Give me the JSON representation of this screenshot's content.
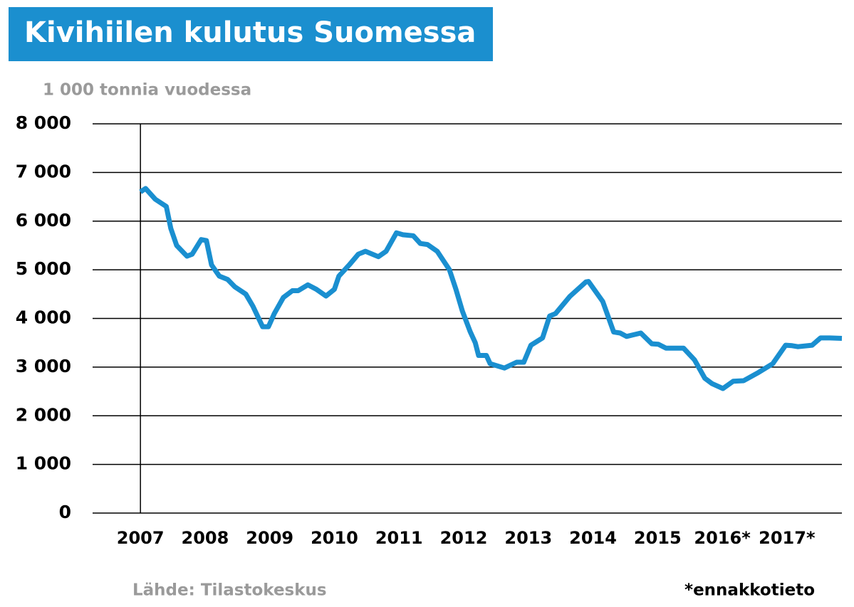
{
  "chart_data": {
    "type": "line",
    "title": "Kivihiilen kulutus Suomessa",
    "subtitle": "1 000 tonnia vuodessa",
    "source": "Lähde: Tilastokeskus",
    "note": "*ennakkotieto",
    "x": [
      2007.0,
      2007.08,
      2007.23,
      2007.4,
      2007.47,
      2007.56,
      2007.72,
      2007.8,
      2007.94,
      2008.02,
      2008.1,
      2008.22,
      2008.35,
      2008.46,
      2008.63,
      2008.74,
      2008.89,
      2008.98,
      2009.07,
      2009.21,
      2009.35,
      2009.44,
      2009.59,
      2009.72,
      2009.87,
      2010.0,
      2010.07,
      2010.23,
      2010.37,
      2010.48,
      2010.68,
      2010.8,
      2010.96,
      2011.06,
      2011.22,
      2011.33,
      2011.44,
      2011.59,
      2011.78,
      2011.88,
      2011.98,
      2012.1,
      2012.18,
      2012.23,
      2012.35,
      2012.41,
      2012.63,
      2012.82,
      2012.93,
      2013.04,
      2013.22,
      2013.33,
      2013.42,
      2013.64,
      2013.89,
      2013.93,
      2014.15,
      2014.32,
      2014.42,
      2014.52,
      2014.74,
      2014.91,
      2015.01,
      2015.13,
      2015.4,
      2015.57,
      2015.73,
      2015.84,
      2016.01,
      2016.17,
      2016.33,
      2016.56,
      2016.78,
      2016.98,
      2017.08,
      2017.17,
      2017.39,
      2017.52,
      2017.66,
      2017.85
    ],
    "series": [
      {
        "name": "Kivihiilen kulutus",
        "color": "#1a8fd0",
        "values": [
          6600,
          6670,
          6450,
          6300,
          5850,
          5500,
          5280,
          5320,
          5620,
          5600,
          5100,
          4870,
          4800,
          4650,
          4500,
          4250,
          3830,
          3830,
          4100,
          4430,
          4570,
          4570,
          4690,
          4600,
          4460,
          4600,
          4870,
          5100,
          5320,
          5380,
          5270,
          5380,
          5760,
          5720,
          5700,
          5540,
          5520,
          5380,
          5000,
          4600,
          4150,
          3730,
          3500,
          3240,
          3240,
          3070,
          2980,
          3100,
          3100,
          3450,
          3600,
          4050,
          4100,
          4450,
          4750,
          4760,
          4350,
          3720,
          3700,
          3630,
          3700,
          3480,
          3470,
          3390,
          3390,
          3150,
          2770,
          2660,
          2560,
          2710,
          2720,
          2890,
          3070,
          3450,
          3440,
          3420,
          3450,
          3600,
          3600,
          3590
        ]
      }
    ],
    "xlim": [
      2006.26,
      2017.85
    ],
    "xticks": [
      2007,
      2008,
      2009,
      2010,
      2011,
      2012,
      2013,
      2014,
      2015,
      {
        "value": 2016,
        "label": "2016*"
      },
      {
        "value": 2017,
        "label": "2017*"
      }
    ],
    "ylim": [
      0,
      8000
    ],
    "yticks": [
      0,
      {
        "value": 1000,
        "label": "1 000"
      },
      {
        "value": 2000,
        "label": "2 000"
      },
      {
        "value": 3000,
        "label": "3 000"
      },
      {
        "value": 4000,
        "label": "4 000"
      },
      {
        "value": 5000,
        "label": "5 000"
      },
      {
        "value": 6000,
        "label": "6 000"
      },
      {
        "value": 7000,
        "label": "7 000"
      },
      {
        "value": 8000,
        "label": "8 000"
      }
    ],
    "grid": true
  }
}
